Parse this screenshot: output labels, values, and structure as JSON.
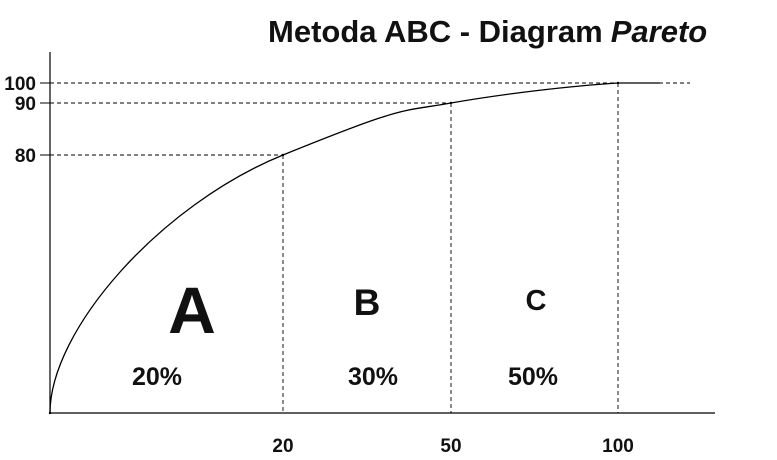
{
  "chart_data": {
    "type": "line",
    "title": "Metoda ABC - Diagram",
    "title_italic": "Pareto",
    "xlabel": "",
    "ylabel": "",
    "x_ticks": [
      {
        "value": 20,
        "label": "20"
      },
      {
        "value": 50,
        "label": "50"
      },
      {
        "value": 100,
        "label": "100"
      }
    ],
    "y_ticks": [
      {
        "value": 80,
        "label": "80"
      },
      {
        "value": 90,
        "label": "90"
      },
      {
        "value": 100,
        "label": "100"
      }
    ],
    "series": [
      {
        "x": [
          0,
          20,
          50,
          100
        ],
        "y": [
          0,
          80,
          90,
          100
        ]
      }
    ],
    "zones": [
      {
        "letter": "A",
        "percent": "20%",
        "x_from": 0,
        "x_to": 20
      },
      {
        "letter": "B",
        "percent": "30%",
        "x_from": 20,
        "x_to": 50
      },
      {
        "letter": "C",
        "percent": "50%",
        "x_from": 50,
        "x_to": 100
      }
    ],
    "grid": false,
    "reference_lines": "dashed"
  }
}
